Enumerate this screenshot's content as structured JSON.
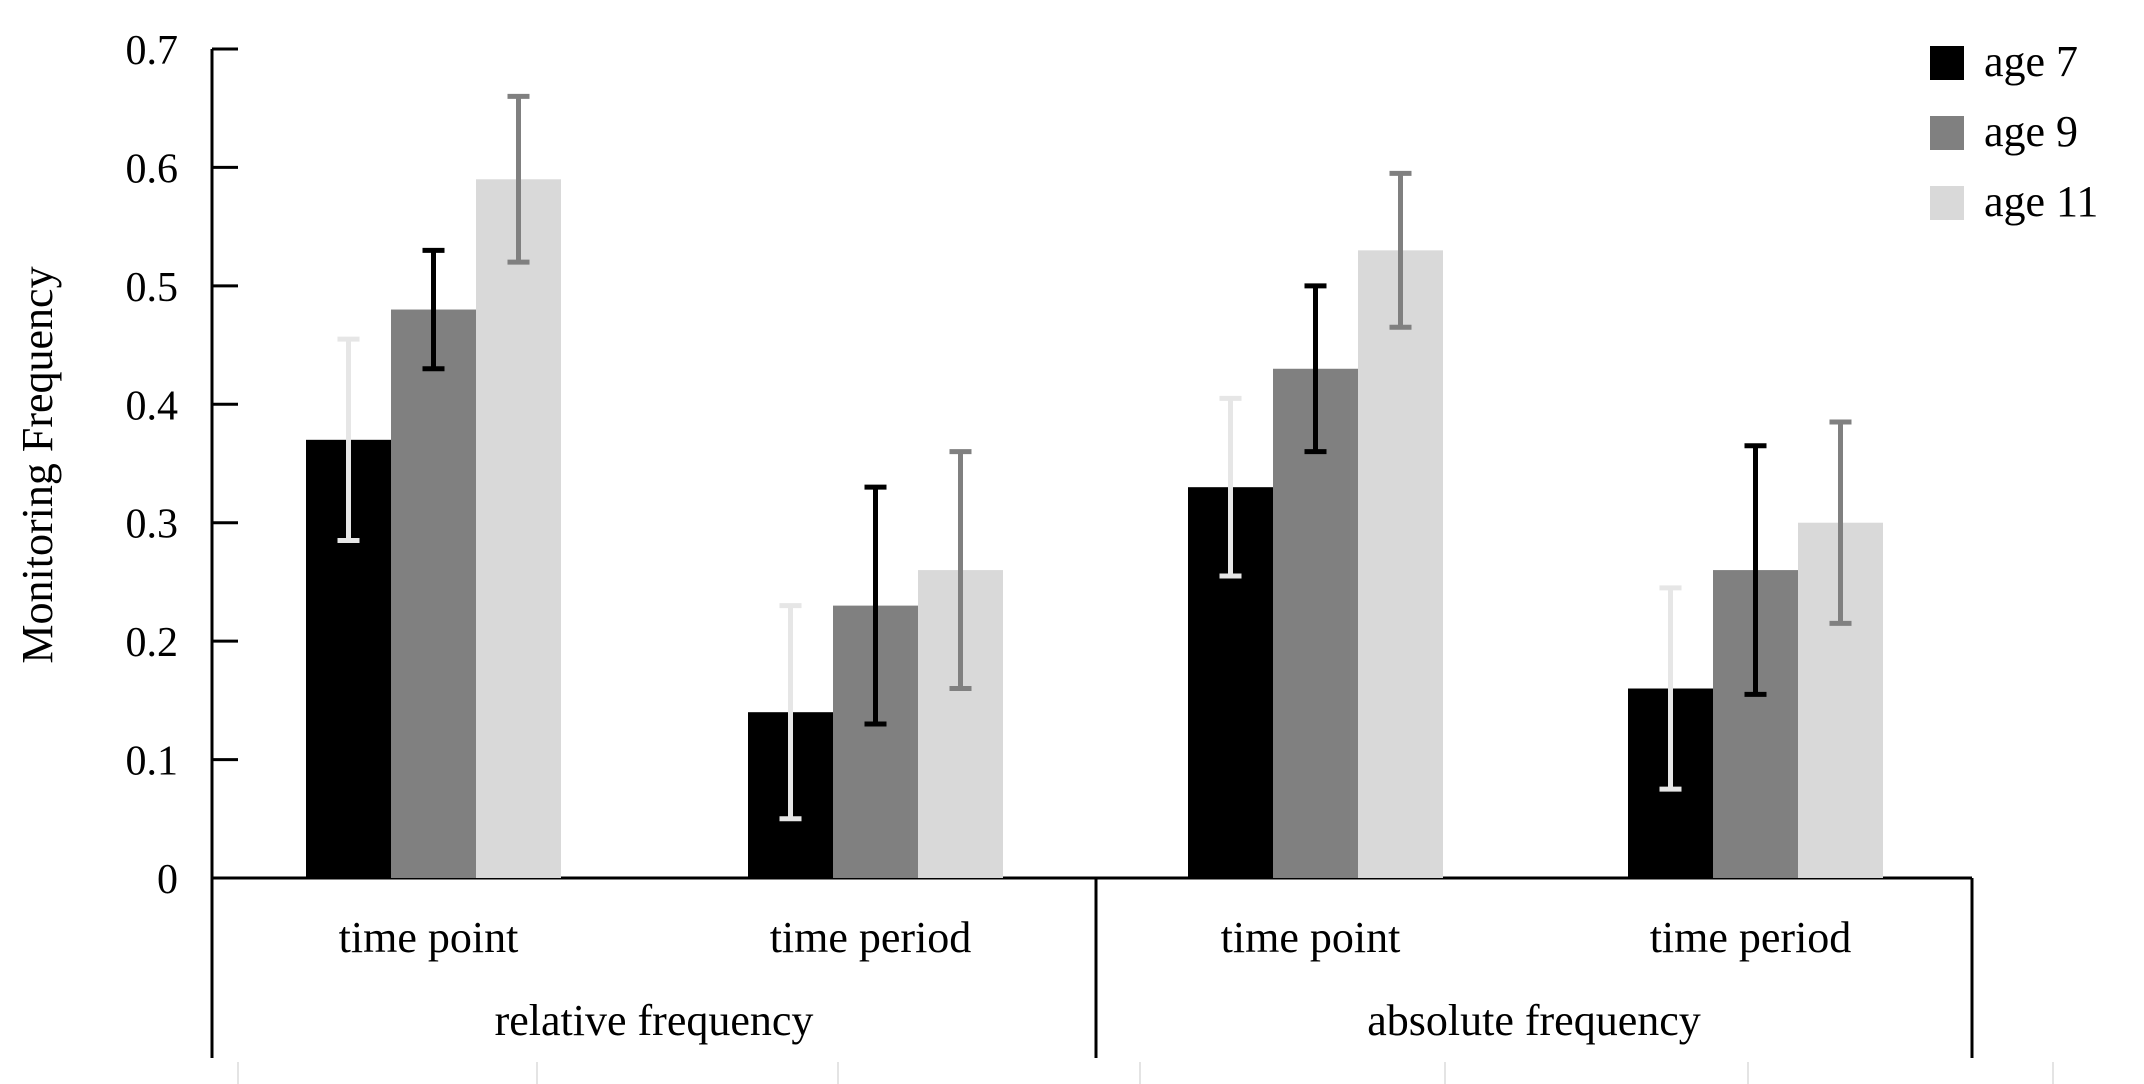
{
  "colors": {
    "age7": "#000000",
    "age9": "#808080",
    "age11": "#d9d9d9",
    "axis": "#000000",
    "errbar_age7": "#e6e6e6",
    "errbar_age9": "#000000",
    "errbar_age11": "#808080"
  },
  "chart_data": {
    "type": "bar",
    "title": "",
    "ylabel": "Monitoring Frequency",
    "xlabel": "",
    "ylim": [
      0,
      0.7
    ],
    "yticks": [
      "0",
      "0.1",
      "0.2",
      "0.3",
      "0.4",
      "0.5",
      "0.6",
      "0.7"
    ],
    "categories": [
      "time point",
      "time period",
      "time point",
      "time period"
    ],
    "groups": [
      {
        "label": "relative frequency",
        "categories": [
          "time point",
          "time period"
        ]
      },
      {
        "label": "absolute frequency",
        "categories": [
          "time point",
          "time period"
        ]
      }
    ],
    "legend_position": "top-right",
    "series": [
      {
        "name": "age 7",
        "values": [
          0.37,
          0.14,
          0.33,
          0.16
        ],
        "errors": [
          0.085,
          0.09,
          0.075,
          0.085
        ]
      },
      {
        "name": "age 9",
        "values": [
          0.48,
          0.23,
          0.43,
          0.26
        ],
        "errors": [
          0.05,
          0.1,
          0.07,
          0.105
        ]
      },
      {
        "name": "age 11",
        "values": [
          0.59,
          0.26,
          0.53,
          0.3
        ],
        "errors": [
          0.07,
          0.1,
          0.065,
          0.085
        ]
      }
    ]
  }
}
